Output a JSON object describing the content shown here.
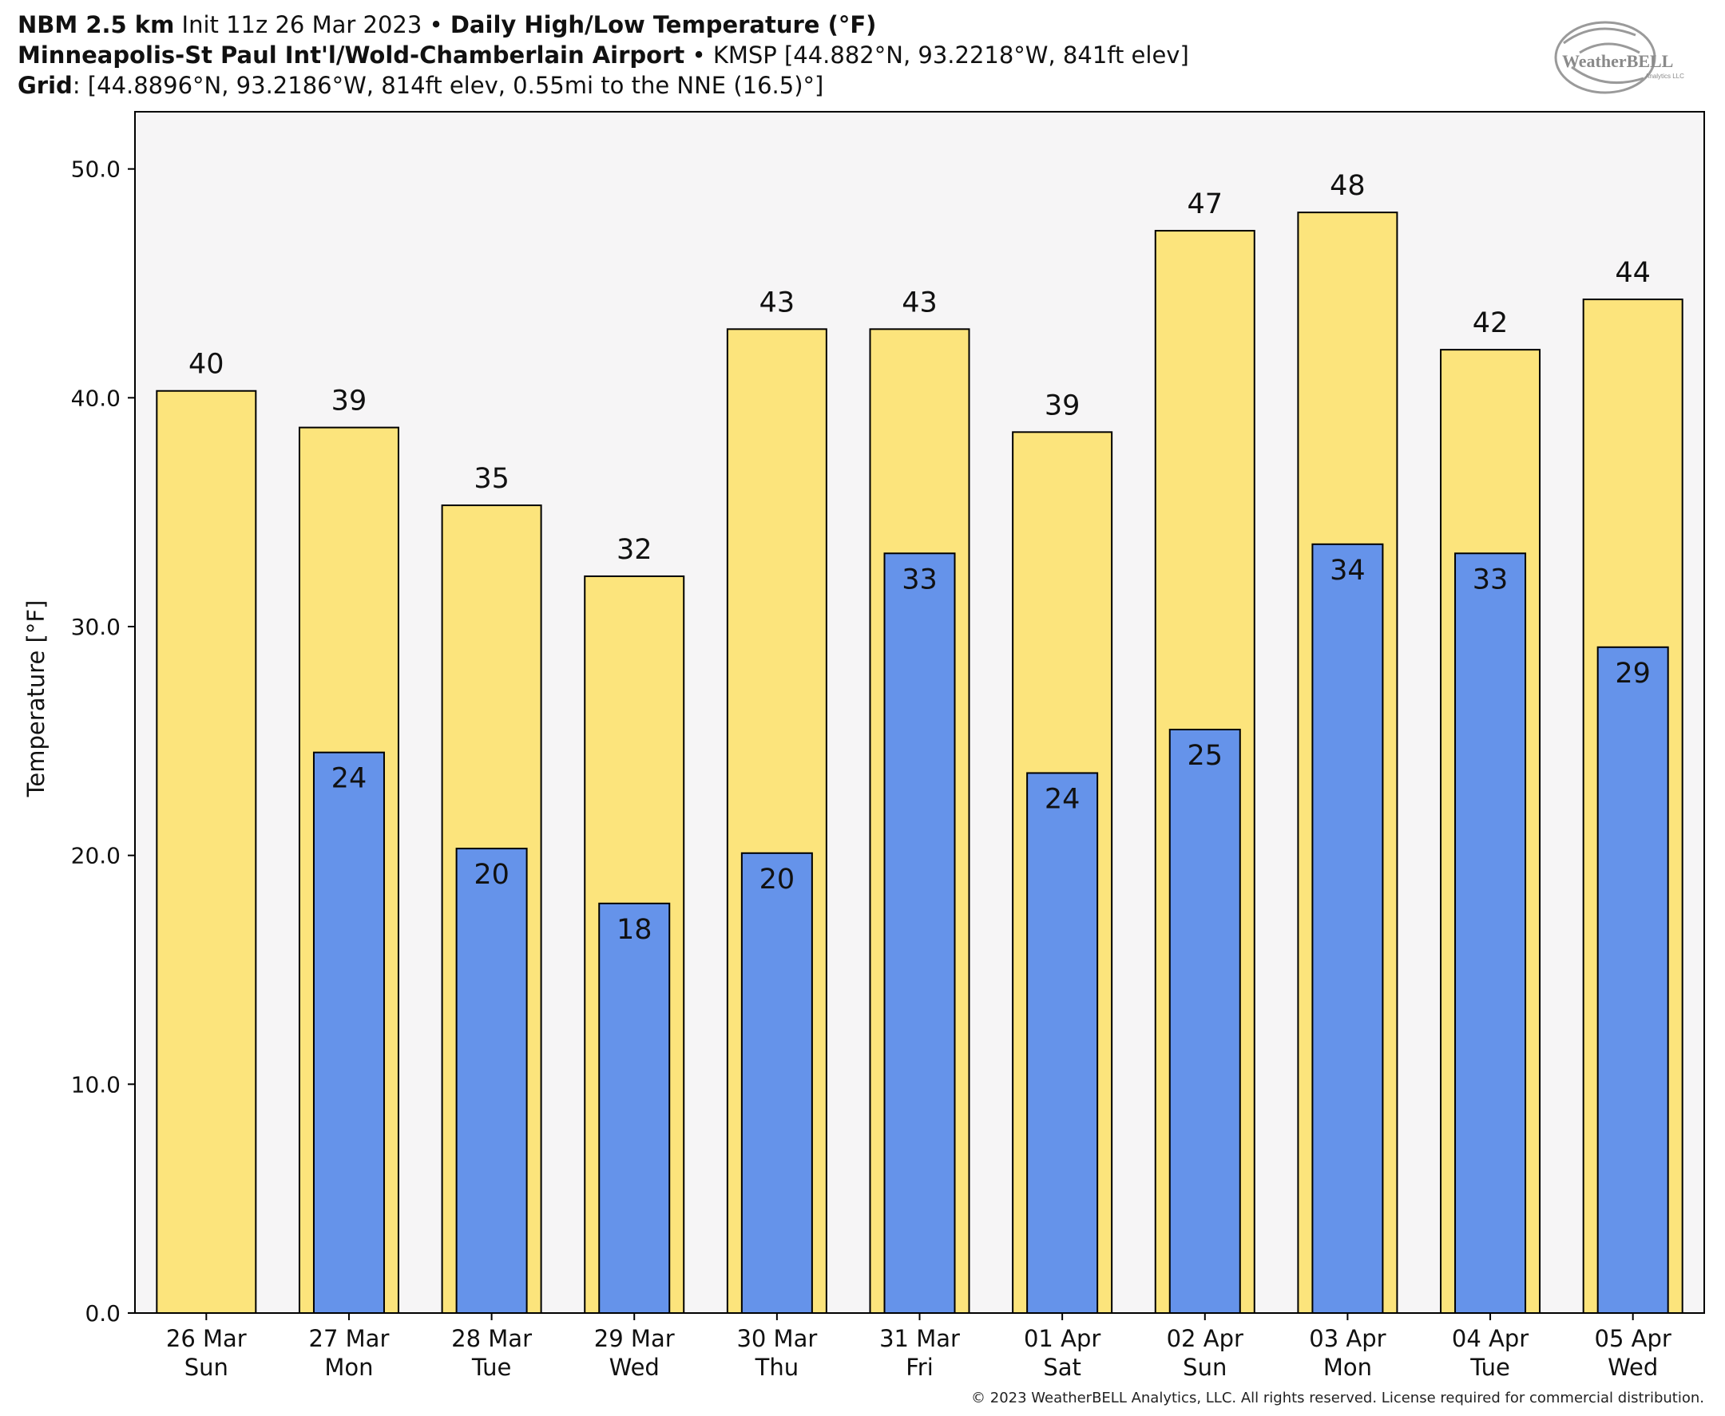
{
  "header": {
    "line1": {
      "model": "NBM 2.5 km",
      "init": "Init 11z 26 Mar 2023",
      "sep": "•",
      "product": "Daily High/Low Temperature (°F)"
    },
    "line2": {
      "station": "Minneapolis-St Paul Int'l/Wold-Chamberlain Airport",
      "sep": "•",
      "station_info": "KMSP [44.882°N, 93.2218°W, 841ft elev]"
    },
    "line3": {
      "grid_label": "Grid",
      "grid_info": ": [44.8896°N, 93.2186°W, 814ft elev, 0.55mi to the NNE (16.5)°]"
    }
  },
  "logo": {
    "text": "WeatherBELL",
    "subtext": "Analytics LLC"
  },
  "copyright": "© 2023 WeatherBELL Analytics, LLC. All rights reserved. License required for commercial distribution.",
  "colors": {
    "high": "#fce47c",
    "low": "#6593ea",
    "plot_bg": "#f6f5f6",
    "edge": "#000000"
  },
  "chart_data": {
    "type": "bar",
    "categories": [
      "26 Mar",
      "27 Mar",
      "28 Mar",
      "29 Mar",
      "30 Mar",
      "31 Mar",
      "01 Apr",
      "02 Apr",
      "03 Apr",
      "04 Apr",
      "05 Apr"
    ],
    "category_days": [
      "Sun",
      "Mon",
      "Tue",
      "Wed",
      "Thu",
      "Fri",
      "Sat",
      "Sun",
      "Mon",
      "Tue",
      "Wed"
    ],
    "series": [
      {
        "key": "high",
        "values": [
          40.3,
          38.7,
          35.3,
          32.2,
          43.0,
          43.0,
          38.5,
          47.3,
          48.1,
          42.1,
          44.3
        ],
        "labels": [
          "40",
          "39",
          "35",
          "32",
          "43",
          "43",
          "39",
          "47",
          "48",
          "42",
          "44"
        ]
      },
      {
        "key": "low",
        "values": [
          null,
          24.5,
          20.3,
          17.9,
          20.1,
          33.2,
          23.6,
          25.5,
          33.6,
          33.2,
          29.1
        ],
        "labels": [
          "",
          "24",
          "20",
          "18",
          "20",
          "33",
          "24",
          "25",
          "34",
          "33",
          "29"
        ]
      }
    ],
    "ylabel": "Temperature [°F]",
    "xlabel": "",
    "ylim": [
      0,
      52.5
    ],
    "yticks": [
      0,
      10,
      20,
      30,
      40,
      50
    ],
    "ytick_labels": [
      "0.0",
      "10.0",
      "20.0",
      "30.0",
      "40.0",
      "50.0"
    ],
    "grid": false,
    "legend": "none"
  }
}
